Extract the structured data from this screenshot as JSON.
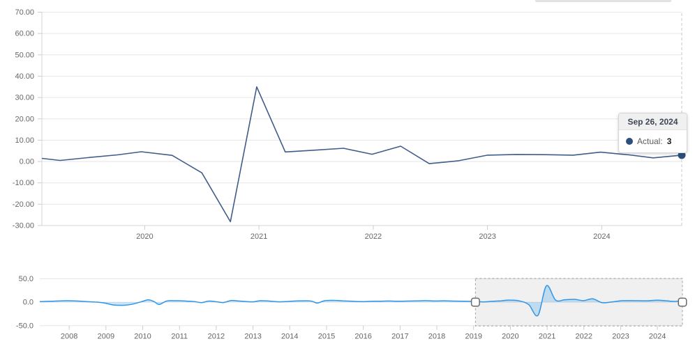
{
  "colors": {
    "main_line": "#3f5c8a",
    "marker": "#2c4f7c",
    "navigator_line": "#2f96e8",
    "navigator_fill": "rgba(47,150,232,0.25)",
    "grid": "#e6e6e6",
    "axis": "#d4d4d4",
    "tick": "#cccccc",
    "label": "#666666",
    "selection_fill": "rgba(110,110,110,0.10)",
    "selection_border": "#a0a0a0",
    "handle_stroke": "#6b6b6b",
    "crosshair": "#c8c8c8"
  },
  "tooltip": {
    "date": "Sep 26, 2024",
    "series_label": "Actual:",
    "value": "3"
  },
  "chart_data": [
    {
      "type": "line",
      "name": "main-chart",
      "title": "",
      "xlabel": "",
      "ylabel": "",
      "legend": "none",
      "grid": true,
      "series_name": "Actual",
      "xlim": [
        2019.1,
        2024.7
      ],
      "ylim": [
        -30,
        70
      ],
      "yticks": [
        {
          "v": 70,
          "label": "70.00"
        },
        {
          "v": 60,
          "label": "60.00"
        },
        {
          "v": 50,
          "label": "50.00"
        },
        {
          "v": 40,
          "label": "40.00"
        },
        {
          "v": 30,
          "label": "30.00"
        },
        {
          "v": 20,
          "label": "20.00"
        },
        {
          "v": 10,
          "label": "10.00"
        },
        {
          "v": 0,
          "label": "0.00"
        },
        {
          "v": -10,
          "label": "-10.00"
        },
        {
          "v": -20,
          "label": "-20.00"
        },
        {
          "v": -30,
          "label": "-30.00"
        }
      ],
      "xticks": [
        {
          "v": 2020,
          "label": "2020"
        },
        {
          "v": 2021,
          "label": "2021"
        },
        {
          "v": 2022,
          "label": "2022"
        },
        {
          "v": 2023,
          "label": "2023"
        },
        {
          "v": 2024,
          "label": "2024"
        }
      ],
      "points": [
        [
          2019.1,
          1.5
        ],
        [
          2019.26,
          0.5
        ],
        [
          2019.5,
          1.8
        ],
        [
          2019.76,
          3.1
        ],
        [
          2019.97,
          4.6
        ],
        [
          2020.24,
          2.9
        ],
        [
          2020.5,
          -5.3
        ],
        [
          2020.75,
          -28.2
        ],
        [
          2020.98,
          35.0
        ],
        [
          2021.23,
          4.5
        ],
        [
          2021.48,
          5.3
        ],
        [
          2021.74,
          6.2
        ],
        [
          2021.99,
          3.4
        ],
        [
          2022.24,
          7.2
        ],
        [
          2022.49,
          -1.0
        ],
        [
          2022.74,
          0.3
        ],
        [
          2023.0,
          3.0
        ],
        [
          2023.25,
          3.3
        ],
        [
          2023.5,
          3.2
        ],
        [
          2023.75,
          3.0
        ],
        [
          2023.99,
          4.4
        ],
        [
          2024.24,
          3.1
        ],
        [
          2024.45,
          1.7
        ],
        [
          2024.7,
          3.0
        ]
      ],
      "last_point": {
        "date": "Sep 26, 2024",
        "value": 3
      }
    },
    {
      "type": "area",
      "name": "navigator",
      "grid": true,
      "xlim": [
        2007.2,
        2024.68
      ],
      "ylim": [
        -50,
        50
      ],
      "yticks": [
        {
          "v": 50,
          "label": "50.0"
        },
        {
          "v": 0,
          "label": "0.0"
        },
        {
          "v": -50,
          "label": "-50.0"
        }
      ],
      "xticks": [
        {
          "v": 2008,
          "label": "2008"
        },
        {
          "v": 2009,
          "label": "2009"
        },
        {
          "v": 2010,
          "label": "2010"
        },
        {
          "v": 2011,
          "label": "2011"
        },
        {
          "v": 2012,
          "label": "2012"
        },
        {
          "v": 2013,
          "label": "2013"
        },
        {
          "v": 2014,
          "label": "2014"
        },
        {
          "v": 2015,
          "label": "2015"
        },
        {
          "v": 2016,
          "label": "2016"
        },
        {
          "v": 2017,
          "label": "2017"
        },
        {
          "v": 2018,
          "label": "2018"
        },
        {
          "v": 2019,
          "label": "2019"
        },
        {
          "v": 2020,
          "label": "2020"
        },
        {
          "v": 2021,
          "label": "2021"
        },
        {
          "v": 2022,
          "label": "2022"
        },
        {
          "v": 2023,
          "label": "2023"
        },
        {
          "v": 2024,
          "label": "2024"
        }
      ],
      "points": [
        [
          2007.2,
          1.2
        ],
        [
          2007.45,
          1.8
        ],
        [
          2007.7,
          2.6
        ],
        [
          2007.95,
          3.2
        ],
        [
          2008.2,
          2.6
        ],
        [
          2008.45,
          1.4
        ],
        [
          2008.7,
          0.4
        ],
        [
          2008.95,
          -1.6
        ],
        [
          2009.2,
          -5.8
        ],
        [
          2009.45,
          -6.6
        ],
        [
          2009.7,
          -4.6
        ],
        [
          2009.95,
          0.6
        ],
        [
          2010.15,
          5.0
        ],
        [
          2010.3,
          1.6
        ],
        [
          2010.45,
          -4.8
        ],
        [
          2010.65,
          2.4
        ],
        [
          2010.9,
          3.2
        ],
        [
          2011.15,
          2.6
        ],
        [
          2011.4,
          1.4
        ],
        [
          2011.6,
          -0.8
        ],
        [
          2011.8,
          2.4
        ],
        [
          2012.0,
          1.0
        ],
        [
          2012.2,
          -0.6
        ],
        [
          2012.4,
          3.6
        ],
        [
          2012.6,
          2.6
        ],
        [
          2012.8,
          1.6
        ],
        [
          2013.0,
          0.8
        ],
        [
          2013.2,
          3.2
        ],
        [
          2013.45,
          2.4
        ],
        [
          2013.7,
          0.8
        ],
        [
          2013.95,
          1.6
        ],
        [
          2014.2,
          2.8
        ],
        [
          2014.45,
          3.0
        ],
        [
          2014.6,
          2.2
        ],
        [
          2014.75,
          -1.8
        ],
        [
          2014.95,
          3.2
        ],
        [
          2015.2,
          4.0
        ],
        [
          2015.45,
          2.8
        ],
        [
          2015.7,
          2.0
        ],
        [
          2015.95,
          1.2
        ],
        [
          2016.2,
          1.8
        ],
        [
          2016.45,
          2.2
        ],
        [
          2016.7,
          2.6
        ],
        [
          2016.95,
          2.0
        ],
        [
          2017.2,
          2.4
        ],
        [
          2017.45,
          2.8
        ],
        [
          2017.7,
          3.4
        ],
        [
          2017.95,
          2.6
        ],
        [
          2018.2,
          3.0
        ],
        [
          2018.45,
          2.4
        ],
        [
          2018.7,
          2.0
        ],
        [
          2018.95,
          1.8
        ],
        [
          2019.1,
          1.5
        ],
        [
          2019.26,
          0.5
        ],
        [
          2019.5,
          1.8
        ],
        [
          2019.76,
          3.1
        ],
        [
          2019.97,
          4.6
        ],
        [
          2020.24,
          2.9
        ],
        [
          2020.5,
          -5.3
        ],
        [
          2020.75,
          -28.2
        ],
        [
          2020.98,
          35.0
        ],
        [
          2021.23,
          4.5
        ],
        [
          2021.48,
          5.3
        ],
        [
          2021.74,
          6.2
        ],
        [
          2021.99,
          3.4
        ],
        [
          2022.24,
          7.2
        ],
        [
          2022.49,
          -1.0
        ],
        [
          2022.74,
          0.3
        ],
        [
          2023.0,
          3.0
        ],
        [
          2023.25,
          3.3
        ],
        [
          2023.5,
          3.2
        ],
        [
          2023.75,
          3.0
        ],
        [
          2023.99,
          4.4
        ],
        [
          2024.24,
          3.1
        ],
        [
          2024.45,
          1.7
        ],
        [
          2024.68,
          3.0
        ]
      ],
      "selection": {
        "from": 2019.05,
        "to": 2024.68
      }
    }
  ]
}
